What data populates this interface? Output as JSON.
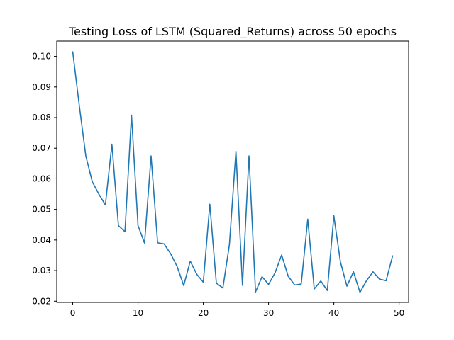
{
  "chart_data": {
    "type": "line",
    "title": "Testing Loss of LSTM (Squared_Returns) across 50 epochs",
    "xlabel": "",
    "ylabel": "",
    "xlim": [
      -2.45,
      51.45
    ],
    "ylim": [
      0.0196,
      0.105
    ],
    "xticks": [
      0,
      10,
      20,
      30,
      40,
      50
    ],
    "xtick_labels": [
      "0",
      "10",
      "20",
      "30",
      "40",
      "50"
    ],
    "yticks": [
      0.02,
      0.03,
      0.04,
      0.05,
      0.06,
      0.07,
      0.08,
      0.09,
      0.1
    ],
    "ytick_labels": [
      "0.02",
      "0.03",
      "0.04",
      "0.05",
      "0.06",
      "0.07",
      "0.08",
      "0.09",
      "0.10"
    ],
    "grid": false,
    "series": [
      {
        "name": "Testing Loss",
        "color": "#1f77b4",
        "x": [
          0,
          1,
          2,
          3,
          4,
          5,
          6,
          7,
          8,
          9,
          10,
          11,
          12,
          13,
          14,
          15,
          16,
          17,
          18,
          19,
          20,
          21,
          22,
          23,
          24,
          25,
          26,
          27,
          28,
          29,
          30,
          31,
          32,
          33,
          34,
          35,
          36,
          37,
          38,
          39,
          40,
          41,
          42,
          43,
          44,
          45,
          46,
          47,
          48,
          49
        ],
        "values": [
          0.1015,
          0.084,
          0.0675,
          0.059,
          0.055,
          0.0515,
          0.0713,
          0.0447,
          0.0427,
          0.0808,
          0.0447,
          0.039,
          0.0675,
          0.0391,
          0.0387,
          0.0355,
          0.0313,
          0.0251,
          0.0331,
          0.0288,
          0.0262,
          0.0517,
          0.0259,
          0.0243,
          0.0385,
          0.069,
          0.0252,
          0.0675,
          0.023,
          0.028,
          0.0255,
          0.0293,
          0.0351,
          0.0282,
          0.0253,
          0.0256,
          0.0468,
          0.024,
          0.0266,
          0.0235,
          0.0479,
          0.0329,
          0.0249,
          0.0296,
          0.0229,
          0.0267,
          0.0296,
          0.0272,
          0.0267,
          0.0348
        ]
      }
    ]
  }
}
